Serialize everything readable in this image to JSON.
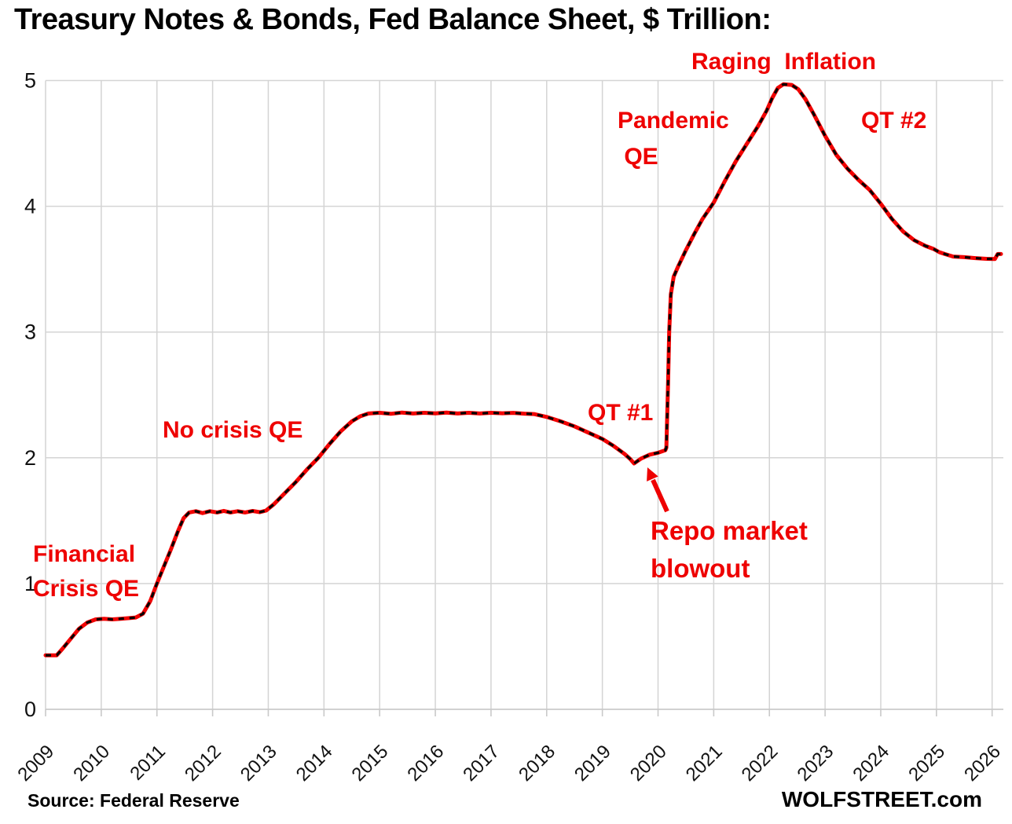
{
  "title": "Treasury Notes & Bonds, Fed Balance Sheet, $ Trillion:",
  "footer": {
    "source": "Source: Federal Reserve",
    "brand": "WOLFSTREET.com"
  },
  "colors": {
    "line_red": "#f10000",
    "line_dash_black": "#000000",
    "annotation_red": "#ee0000",
    "grid": "#d4d4d4",
    "axis": "#c9c9c9",
    "tick_text": "#111111"
  },
  "chart_data": {
    "type": "line",
    "title": "Treasury Notes & Bonds, Fed Balance Sheet, $ Trillion:",
    "xlabel": "",
    "ylabel": "$ Trillion",
    "xlim": [
      2009,
      2026.2
    ],
    "ylim": [
      0,
      5
    ],
    "grid": true,
    "legend_position": "none",
    "x_ticks": [
      2009,
      2010,
      2011,
      2012,
      2013,
      2014,
      2015,
      2016,
      2017,
      2018,
      2019,
      2020,
      2021,
      2022,
      2023,
      2024,
      2025,
      2026
    ],
    "y_ticks": [
      0,
      1,
      2,
      3,
      4,
      5
    ],
    "series": [
      {
        "name": "Treasury Notes & Bonds",
        "style": "red line with black dash overlay",
        "points": [
          [
            2009.0,
            0.43
          ],
          [
            2009.2,
            0.43
          ],
          [
            2009.3,
            0.48
          ],
          [
            2009.45,
            0.56
          ],
          [
            2009.6,
            0.64
          ],
          [
            2009.75,
            0.69
          ],
          [
            2009.9,
            0.715
          ],
          [
            2010.05,
            0.72
          ],
          [
            2010.2,
            0.715
          ],
          [
            2010.35,
            0.72
          ],
          [
            2010.5,
            0.725
          ],
          [
            2010.62,
            0.73
          ],
          [
            2010.75,
            0.76
          ],
          [
            2010.88,
            0.86
          ],
          [
            2011.0,
            1.0
          ],
          [
            2011.12,
            1.13
          ],
          [
            2011.25,
            1.27
          ],
          [
            2011.38,
            1.42
          ],
          [
            2011.48,
            1.52
          ],
          [
            2011.58,
            1.565
          ],
          [
            2011.7,
            1.575
          ],
          [
            2011.82,
            1.56
          ],
          [
            2011.95,
            1.575
          ],
          [
            2012.08,
            1.565
          ],
          [
            2012.2,
            1.578
          ],
          [
            2012.32,
            1.565
          ],
          [
            2012.45,
            1.575
          ],
          [
            2012.58,
            1.565
          ],
          [
            2012.72,
            1.577
          ],
          [
            2012.85,
            1.568
          ],
          [
            2012.96,
            1.58
          ],
          [
            2013.1,
            1.63
          ],
          [
            2013.3,
            1.72
          ],
          [
            2013.5,
            1.81
          ],
          [
            2013.7,
            1.91
          ],
          [
            2013.9,
            2.0
          ],
          [
            2014.1,
            2.11
          ],
          [
            2014.3,
            2.21
          ],
          [
            2014.5,
            2.29
          ],
          [
            2014.65,
            2.33
          ],
          [
            2014.8,
            2.352
          ],
          [
            2015.0,
            2.358
          ],
          [
            2015.2,
            2.35
          ],
          [
            2015.4,
            2.36
          ],
          [
            2015.6,
            2.352
          ],
          [
            2015.8,
            2.358
          ],
          [
            2016.0,
            2.353
          ],
          [
            2016.2,
            2.36
          ],
          [
            2016.4,
            2.352
          ],
          [
            2016.6,
            2.358
          ],
          [
            2016.8,
            2.352
          ],
          [
            2017.0,
            2.358
          ],
          [
            2017.2,
            2.354
          ],
          [
            2017.4,
            2.357
          ],
          [
            2017.6,
            2.351
          ],
          [
            2017.77,
            2.348
          ],
          [
            2018.0,
            2.325
          ],
          [
            2018.25,
            2.29
          ],
          [
            2018.5,
            2.25
          ],
          [
            2018.75,
            2.2
          ],
          [
            2019.0,
            2.15
          ],
          [
            2019.2,
            2.095
          ],
          [
            2019.4,
            2.03
          ],
          [
            2019.5,
            1.99
          ],
          [
            2019.57,
            1.955
          ],
          [
            2019.7,
            1.995
          ],
          [
            2019.85,
            2.025
          ],
          [
            2020.0,
            2.04
          ],
          [
            2020.13,
            2.06
          ],
          [
            2020.15,
            2.08
          ],
          [
            2020.18,
            2.6
          ],
          [
            2020.2,
            3.0
          ],
          [
            2020.23,
            3.3
          ],
          [
            2020.28,
            3.44
          ],
          [
            2020.36,
            3.52
          ],
          [
            2020.5,
            3.65
          ],
          [
            2020.65,
            3.78
          ],
          [
            2020.8,
            3.9
          ],
          [
            2021.0,
            4.03
          ],
          [
            2021.2,
            4.2
          ],
          [
            2021.4,
            4.36
          ],
          [
            2021.6,
            4.5
          ],
          [
            2021.8,
            4.64
          ],
          [
            2021.95,
            4.76
          ],
          [
            2022.05,
            4.86
          ],
          [
            2022.15,
            4.94
          ],
          [
            2022.25,
            4.97
          ],
          [
            2022.4,
            4.965
          ],
          [
            2022.52,
            4.93
          ],
          [
            2022.65,
            4.85
          ],
          [
            2022.8,
            4.73
          ],
          [
            2023.0,
            4.56
          ],
          [
            2023.2,
            4.41
          ],
          [
            2023.4,
            4.3
          ],
          [
            2023.6,
            4.21
          ],
          [
            2023.8,
            4.13
          ],
          [
            2024.0,
            4.02
          ],
          [
            2024.2,
            3.9
          ],
          [
            2024.4,
            3.8
          ],
          [
            2024.6,
            3.73
          ],
          [
            2024.8,
            3.685
          ],
          [
            2024.95,
            3.66
          ],
          [
            2025.05,
            3.635
          ],
          [
            2025.15,
            3.62
          ],
          [
            2025.3,
            3.6
          ],
          [
            2025.5,
            3.595
          ],
          [
            2025.7,
            3.588
          ],
          [
            2025.9,
            3.582
          ],
          [
            2026.05,
            3.58
          ],
          [
            2026.1,
            3.62
          ],
          [
            2026.16,
            3.62
          ]
        ]
      }
    ],
    "annotations": [
      {
        "id": "financial-crisis-qe",
        "text": "Financial\nCrisis QE",
        "anchor_year": 2009.3,
        "anchor_value": 1.2
      },
      {
        "id": "no-crisis-qe",
        "text": "No crisis QE",
        "anchor_year": 2013.2,
        "anchor_value": 2.2
      },
      {
        "id": "qt-1",
        "text": "QT #1",
        "anchor_year": 2018.9,
        "anchor_value": 2.4
      },
      {
        "id": "repo-market-blowout",
        "text": "Repo market\nblowout",
        "anchor_year": 2019.6,
        "anchor_value": 1.95,
        "arrow": true
      },
      {
        "id": "pandemic-qe",
        "text": "Pandemic\n QE",
        "anchor_year": 2020.3,
        "anchor_value": 4.6
      },
      {
        "id": "raging-inflation",
        "text": "Raging  Inflation",
        "anchor_year": 2022.3,
        "anchor_value": 5.1
      },
      {
        "id": "qt-2",
        "text": "QT #2",
        "anchor_year": 2023.7,
        "anchor_value": 4.6
      }
    ]
  }
}
